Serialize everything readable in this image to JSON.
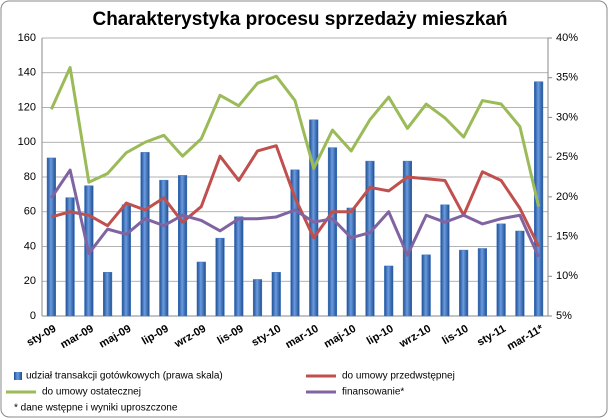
{
  "chart_data": {
    "type": "combo",
    "title": "Charakterystyka procesu sprzedaży mieszkań",
    "categories": [
      "sty-09",
      null,
      "mar-09",
      null,
      "maj-09",
      null,
      "lip-09",
      null,
      "wrz-09",
      null,
      "lis-09",
      null,
      "sty-10",
      null,
      "mar-10",
      null,
      "maj-10",
      null,
      "lip-10",
      null,
      "wrz-10",
      null,
      "lis-10",
      null,
      "sty-11",
      null,
      "mar-11*"
    ],
    "ylim": [
      0,
      160
    ],
    "yticks": [
      0,
      20,
      40,
      60,
      80,
      100,
      120,
      140,
      160
    ],
    "y2lim": [
      5,
      40
    ],
    "y2ticks": [
      {
        "value": 5,
        "label": "5%"
      },
      {
        "value": 10,
        "label": "10%"
      },
      {
        "value": 15,
        "label": "15%"
      },
      {
        "value": 20,
        "label": "20%"
      },
      {
        "value": 25,
        "label": "25%"
      },
      {
        "value": 30,
        "label": "30%"
      },
      {
        "value": 35,
        "label": "35%"
      },
      {
        "value": 40,
        "label": "40%"
      }
    ],
    "series": [
      {
        "name": "udział transakcji gotówkowych (prawa skala)",
        "type": "bar",
        "axis": "y2",
        "color": "#3a74c4",
        "values": [
          24.9,
          19.9,
          21.4,
          10.5,
          19.0,
          25.6,
          22.1,
          22.7,
          11.8,
          14.8,
          17.5,
          9.6,
          10.5,
          23.4,
          29.7,
          26.2,
          18.6,
          24.5,
          11.3,
          24.5,
          12.7,
          19.0,
          13.3,
          13.5,
          16.6,
          15.7,
          34.5
        ]
      },
      {
        "name": "do umowy przedwstępnej",
        "type": "line",
        "color": "#c0504d",
        "values": [
          57,
          60,
          58,
          52,
          65,
          61,
          68,
          54,
          63,
          92,
          78,
          95,
          98,
          68,
          45,
          60,
          60,
          74,
          72,
          80,
          79,
          78,
          58,
          83,
          78,
          62,
          40
        ]
      },
      {
        "name": "do umowy ostatecznej",
        "type": "line",
        "color": "#9bbb59",
        "values": [
          119,
          143,
          77,
          82,
          94,
          100,
          104,
          92,
          102,
          127,
          121,
          134,
          138,
          124,
          85,
          107,
          95,
          113,
          126,
          108,
          122,
          114,
          103,
          124,
          122,
          109,
          63
        ]
      },
      {
        "name": "finansowanie*",
        "type": "line",
        "color": "#8064a2",
        "values": [
          68,
          84,
          36,
          50,
          47,
          56,
          52,
          58,
          55,
          49,
          56,
          56,
          57,
          61,
          54,
          56,
          45,
          48,
          60,
          35,
          58,
          54,
          58,
          53,
          56,
          58,
          34
        ]
      }
    ],
    "grid": true,
    "footnote": "* dane wstępne i wyniki uproszczone"
  }
}
